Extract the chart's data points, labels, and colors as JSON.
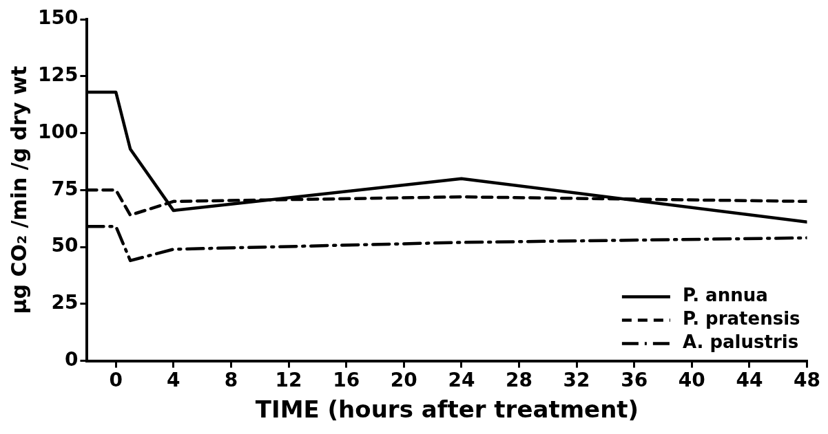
{
  "chart_data": {
    "type": "line",
    "xlabel": "TIME (hours after treatment)",
    "ylabel": "μg CO₂ /min /g dry wt",
    "xlim": [
      -2,
      48
    ],
    "xticks": [
      0,
      4,
      8,
      12,
      16,
      20,
      24,
      28,
      32,
      36,
      40,
      44,
      48
    ],
    "ylim": [
      0,
      150
    ],
    "yticks": [
      0,
      25,
      50,
      75,
      100,
      125,
      150
    ],
    "grid": false,
    "legend": "bottom right",
    "marker": "none",
    "series": [
      {
        "name": "P. annua",
        "color": "#000000",
        "line_style": "solid",
        "x": [
          -2,
          0,
          1,
          4,
          24,
          48
        ],
        "values": [
          118,
          118,
          93,
          66,
          80,
          61
        ]
      },
      {
        "name": "P. pratensis",
        "color": "#000000",
        "line_style": "dashed",
        "x": [
          -2,
          0,
          1,
          4,
          24,
          48
        ],
        "values": [
          75,
          75,
          64,
          70,
          72,
          70
        ]
      },
      {
        "name": "A. palustris",
        "color": "#000000",
        "line_style": "dashdot",
        "x": [
          -2,
          0,
          1,
          4,
          24,
          48
        ],
        "values": [
          59,
          59,
          44,
          49,
          52,
          54
        ]
      }
    ]
  }
}
